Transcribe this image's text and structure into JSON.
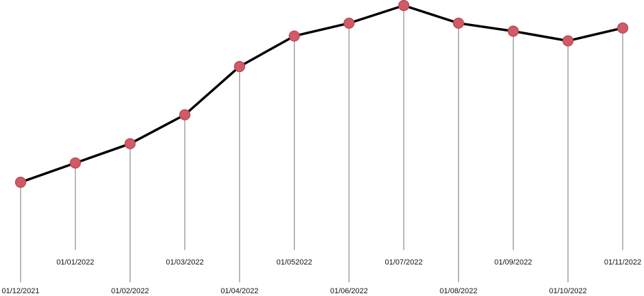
{
  "chart_data": {
    "type": "line",
    "x": [
      "01/12/2021",
      "01/01/2022",
      "01/02/2022",
      "01/03/2022",
      "01/04/2022",
      "01/052022",
      "01/06/2022",
      "01/07/2022",
      "01/08/2022",
      "01/09/2022",
      "01/10/2022",
      "01/11/2022"
    ],
    "series": [
      {
        "values": [
          29,
          35,
          41,
          50,
          65,
          74.5,
          78.5,
          84,
          78.5,
          76,
          73,
          77
        ]
      }
    ],
    "ylim": [
      0,
      84
    ],
    "grid": false,
    "title": "",
    "xlabel": "",
    "ylabel": "",
    "colors": {
      "line": "#000000",
      "point": "#d05a66",
      "stem": "#8c8c8c"
    }
  }
}
